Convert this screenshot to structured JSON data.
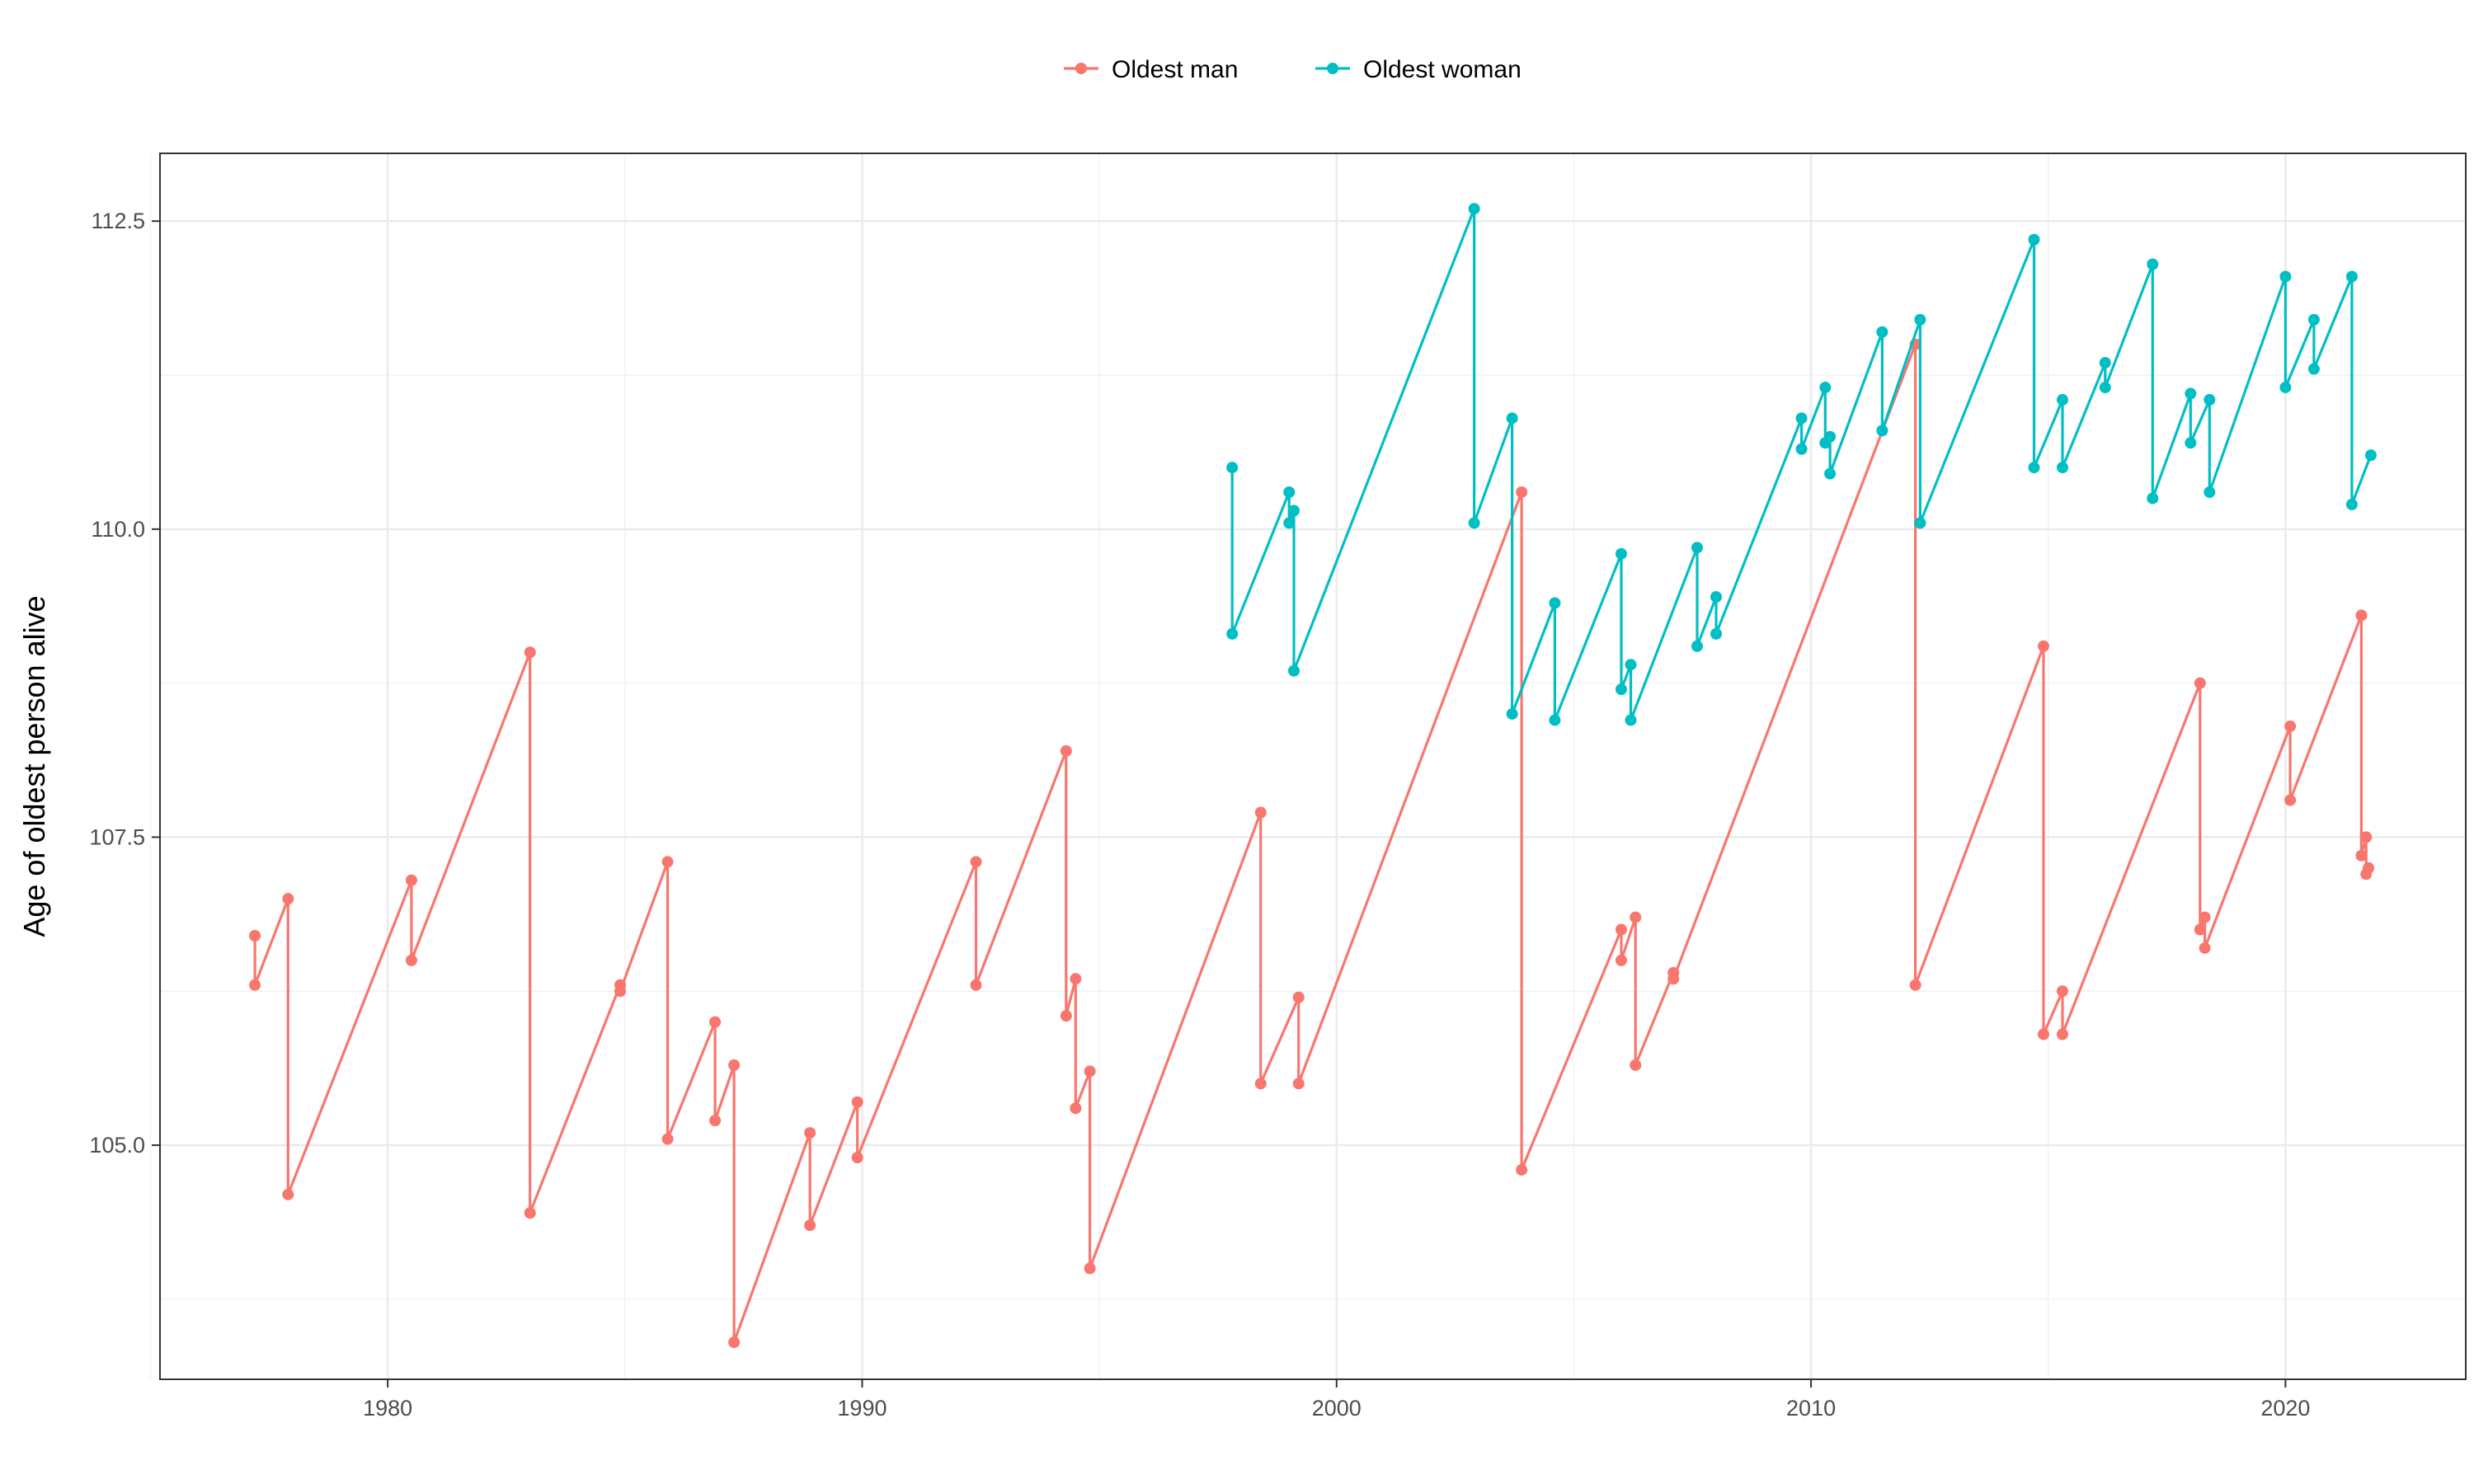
{
  "chart_data": {
    "type": "line",
    "title": "",
    "xlabel": "",
    "ylabel": "Age of oldest person alive",
    "xlim": [
      1975.2,
      2023.8
    ],
    "ylim": [
      103.1,
      113.05
    ],
    "x_ticks": [
      1980,
      1990,
      2000,
      2010,
      2020
    ],
    "y_ticks": [
      105.0,
      107.5,
      110.0,
      112.5
    ],
    "y_tick_labels": [
      "105.0",
      "107.5",
      "110.0",
      "112.5"
    ],
    "x_minor_ticks": [
      1975,
      1985,
      1995,
      2005,
      2015
    ],
    "y_minor_ticks": [
      103.75,
      106.25,
      108.75,
      111.25
    ],
    "grid": true,
    "legend_position": "top",
    "series": [
      {
        "name": "Oldest man",
        "color": "#F8766D",
        "points": [
          [
            1977.2,
            106.7
          ],
          [
            1977.2,
            106.3
          ],
          [
            1977.9,
            107.0
          ],
          [
            1977.9,
            104.6
          ],
          [
            1980.5,
            107.15
          ],
          [
            1980.5,
            106.5
          ],
          [
            1983.0,
            109.0
          ],
          [
            1983.0,
            104.45
          ],
          [
            1984.9,
            106.3
          ],
          [
            1984.9,
            106.25
          ],
          [
            1985.9,
            107.3
          ],
          [
            1985.9,
            105.05
          ],
          [
            1986.9,
            106.0
          ],
          [
            1986.9,
            105.2
          ],
          [
            1987.3,
            105.65
          ],
          [
            1987.3,
            103.4
          ],
          [
            1988.9,
            105.1
          ],
          [
            1988.9,
            104.35
          ],
          [
            1989.9,
            105.35
          ],
          [
            1989.9,
            104.9
          ],
          [
            1992.4,
            107.3
          ],
          [
            1992.4,
            106.3
          ],
          [
            1994.3,
            108.2
          ],
          [
            1994.3,
            106.05
          ],
          [
            1994.5,
            106.35
          ],
          [
            1994.5,
            105.3
          ],
          [
            1994.8,
            105.6
          ],
          [
            1994.8,
            104.0
          ],
          [
            1998.4,
            107.7
          ],
          [
            1998.4,
            105.5
          ],
          [
            1999.2,
            106.2
          ],
          [
            1999.2,
            105.5
          ],
          [
            2003.9,
            110.3
          ],
          [
            2003.9,
            104.8
          ],
          [
            2006.0,
            106.75
          ],
          [
            2006.0,
            106.5
          ],
          [
            2006.3,
            106.85
          ],
          [
            2006.3,
            105.65
          ],
          [
            2007.1,
            106.4
          ],
          [
            2007.1,
            106.35
          ],
          [
            2012.2,
            111.5
          ],
          [
            2012.2,
            106.3
          ],
          [
            2014.9,
            109.05
          ],
          [
            2014.9,
            105.9
          ],
          [
            2015.3,
            106.25
          ],
          [
            2015.3,
            105.9
          ],
          [
            2018.2,
            108.75
          ],
          [
            2018.2,
            106.75
          ],
          [
            2018.3,
            106.85
          ],
          [
            2018.3,
            106.6
          ],
          [
            2020.1,
            108.4
          ],
          [
            2020.1,
            107.8
          ],
          [
            2021.6,
            109.3
          ],
          [
            2021.6,
            107.35
          ],
          [
            2021.7,
            107.5
          ],
          [
            2021.7,
            107.2
          ],
          [
            2021.75,
            107.25
          ]
        ]
      },
      {
        "name": "Oldest woman",
        "color": "#00BFC4",
        "points": [
          [
            1997.8,
            110.5
          ],
          [
            1997.8,
            109.15
          ],
          [
            1999.0,
            110.3
          ],
          [
            1999.0,
            110.05
          ],
          [
            1999.1,
            110.15
          ],
          [
            1999.1,
            108.85
          ],
          [
            2002.9,
            112.6
          ],
          [
            2002.9,
            110.05
          ],
          [
            2003.7,
            110.9
          ],
          [
            2003.7,
            108.5
          ],
          [
            2004.6,
            109.4
          ],
          [
            2004.6,
            108.45
          ],
          [
            2006.0,
            109.8
          ],
          [
            2006.0,
            108.7
          ],
          [
            2006.2,
            108.9
          ],
          [
            2006.2,
            108.45
          ],
          [
            2007.6,
            109.85
          ],
          [
            2007.6,
            109.05
          ],
          [
            2008.0,
            109.45
          ],
          [
            2008.0,
            109.15
          ],
          [
            2009.8,
            110.9
          ],
          [
            2009.8,
            110.65
          ],
          [
            2010.3,
            111.15
          ],
          [
            2010.3,
            110.7
          ],
          [
            2010.4,
            110.75
          ],
          [
            2010.4,
            110.45
          ],
          [
            2011.5,
            111.6
          ],
          [
            2011.5,
            110.8
          ],
          [
            2012.3,
            111.7
          ],
          [
            2012.3,
            110.05
          ],
          [
            2014.7,
            112.35
          ],
          [
            2014.7,
            110.5
          ],
          [
            2015.3,
            111.05
          ],
          [
            2015.3,
            110.5
          ],
          [
            2016.2,
            111.35
          ],
          [
            2016.2,
            111.15
          ],
          [
            2017.2,
            112.15
          ],
          [
            2017.2,
            110.25
          ],
          [
            2018.0,
            111.1
          ],
          [
            2018.0,
            110.7
          ],
          [
            2018.4,
            111.05
          ],
          [
            2018.4,
            110.3
          ],
          [
            2020.0,
            112.05
          ],
          [
            2020.0,
            111.15
          ],
          [
            2020.6,
            111.7
          ],
          [
            2020.6,
            111.3
          ],
          [
            2021.4,
            112.05
          ],
          [
            2021.4,
            110.2
          ],
          [
            2021.8,
            110.6
          ]
        ]
      }
    ]
  }
}
